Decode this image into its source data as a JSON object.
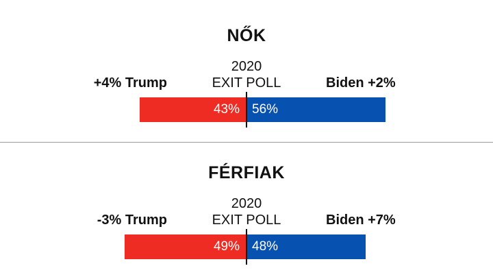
{
  "colors": {
    "trump": "#ee2c24",
    "biden": "#0751b0"
  },
  "chart_data": [
    {
      "type": "bar",
      "title": "NŐK",
      "poll_year": "2020",
      "poll_label": "EXIT POLL",
      "series": [
        {
          "name": "Trump",
          "value": 43,
          "label": "43%"
        },
        {
          "name": "Biden",
          "value": 56,
          "label": "56%"
        }
      ],
      "side_labels": {
        "left": "+4% Trump",
        "right": "Biden +2%"
      },
      "xlim": [
        0,
        100
      ]
    },
    {
      "type": "bar",
      "title": "FÉRFIAK",
      "poll_year": "2020",
      "poll_label": "EXIT POLL",
      "series": [
        {
          "name": "Trump",
          "value": 49,
          "label": "49%"
        },
        {
          "name": "Biden",
          "value": 48,
          "label": "48%"
        }
      ],
      "side_labels": {
        "left": "-3% Trump",
        "right": "Biden +7%"
      },
      "xlim": [
        0,
        100
      ]
    }
  ]
}
